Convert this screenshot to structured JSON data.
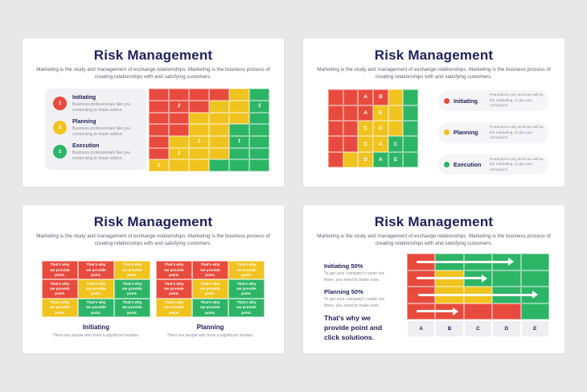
{
  "colors": {
    "red": "#E84B3E",
    "yellow": "#F0C31E",
    "green": "#2DB566",
    "navy": "#1E2157"
  },
  "shared": {
    "title": "Risk Management",
    "subtitle": "Marketing is the study and management of exchange relationships. Marketing is the business process of creating relationships with and satisfying customers."
  },
  "slide1": {
    "legend": [
      {
        "num": "1",
        "color": "red",
        "label": "Initiating",
        "desc": "Business professionals like you connecting to share advice."
      },
      {
        "num": "2",
        "color": "yellow",
        "label": "Planning",
        "desc": "Business professionals like you connecting to share advice."
      },
      {
        "num": "3",
        "color": "green",
        "label": "Execution",
        "desc": "Business professionals like you connecting to share advice."
      }
    ],
    "matrix": {
      "rows": [
        [
          "r",
          "r",
          "r",
          "r",
          "y",
          "g"
        ],
        [
          "r",
          "r:2",
          "r",
          "y",
          "y",
          "g:3"
        ],
        [
          "r",
          "r",
          "y",
          "y",
          "y",
          "g"
        ],
        [
          "r",
          "r",
          "y",
          "y",
          "g",
          "g"
        ],
        [
          "r",
          "y",
          "y:3",
          "y",
          "g:1",
          "g"
        ],
        [
          "r",
          "y:2",
          "y",
          "y",
          "g",
          "g"
        ],
        [
          "y:1",
          "y",
          "y",
          "g",
          "g",
          "g"
        ]
      ]
    }
  },
  "slide2": {
    "matrix": {
      "rows": [
        [
          "r",
          "r",
          "r:A",
          "r:B",
          "y",
          "g"
        ],
        [
          "r",
          "r",
          "r:A",
          "y:E",
          "y",
          "g"
        ],
        [
          "r",
          "r",
          "y:C",
          "y:D",
          "y",
          "g"
        ],
        [
          "r",
          "r",
          "y:C",
          "y:A",
          "g:C",
          "g"
        ],
        [
          "r",
          "y",
          "y:D",
          "g:A",
          "g:E",
          "g"
        ]
      ]
    },
    "legend": [
      {
        "color": "red",
        "label": "Initiating",
        "desc": "Promotions only work as well as the marketing, to get your company's."
      },
      {
        "color": "yellow",
        "label": "Planning",
        "desc": "Promotions only work as well as the marketing, to get your company's."
      },
      {
        "color": "green",
        "label": "Execution",
        "desc": "Promotions only work as well as the marketing, to get your company's."
      }
    ]
  },
  "slide3": {
    "cell_text": "That's why we provide point.",
    "groups": [
      {
        "heading": "Initiating",
        "desc": "There are people who have a significant number.",
        "grid": {
          "rows": [
            [
              "r",
              "r",
              "y"
            ],
            [
              "r",
              "y",
              "g"
            ],
            [
              "y",
              "g",
              "g"
            ]
          ]
        }
      },
      {
        "heading": "Planning",
        "desc": "There are people who have a significant number.",
        "grid": {
          "rows": [
            [
              "r",
              "r",
              "y"
            ],
            [
              "r",
              "y",
              "g"
            ],
            [
              "y",
              "g",
              "g"
            ]
          ]
        }
      }
    ]
  },
  "slide4": {
    "stats": [
      {
        "label": "Initiating 50%",
        "desc": "To get your company's name out there, you need to make sure."
      },
      {
        "label": "Planning 50%",
        "desc": "To get your company's name out there, you need to make sure."
      }
    ],
    "callout": "That's why we provide point and click solutions.",
    "chart": {
      "type": "heatmap",
      "columns": [
        "A",
        "B",
        "C",
        "D",
        "E"
      ],
      "rows": [
        [
          "r",
          "g",
          "g",
          "g",
          "g"
        ],
        [
          "r",
          "y",
          "g",
          "g",
          "g"
        ],
        [
          "r",
          "y",
          "y",
          "g",
          "g"
        ],
        [
          "r",
          "r",
          "r",
          "r",
          "g"
        ]
      ],
      "arrows": [
        {
          "start_pct": 7,
          "end_pct": 72
        },
        {
          "start_pct": 7,
          "end_pct": 53
        },
        {
          "start_pct": 8,
          "end_pct": 89
        },
        {
          "start_pct": 7,
          "end_pct": 33
        }
      ]
    }
  }
}
